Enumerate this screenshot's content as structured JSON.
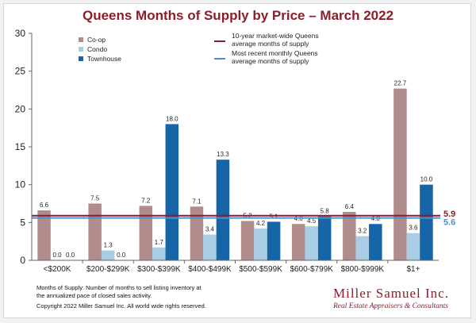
{
  "colors": {
    "coop": "#b08c8c",
    "condo": "#a8cde4",
    "townhouse": "#1565a8",
    "avg10": "#8a1f2b",
    "recent": "#4e8fc8",
    "title": "#8a1f2b",
    "grid": "#d0d0d0"
  },
  "chart_data": {
    "type": "bar",
    "title": "Queens Months of Supply by Price – March 2022",
    "categories": [
      "<$200K",
      "$200-$299K",
      "$300-$399K",
      "$400-$499K",
      "$500-$599K",
      "$600-$799K",
      "$800-$999K",
      "$1+"
    ],
    "series": [
      {
        "name": "Co-op",
        "key": "coop",
        "values": [
          6.6,
          7.5,
          7.2,
          7.1,
          5.2,
          4.8,
          6.4,
          22.7
        ],
        "labels": [
          "6.6",
          "7.5",
          "7.2",
          "7.1",
          "5.2",
          "4.8",
          "6.4",
          "22.7"
        ]
      },
      {
        "name": "Condo",
        "key": "condo",
        "values": [
          0.0,
          1.3,
          1.7,
          3.4,
          4.2,
          4.5,
          3.2,
          3.6
        ],
        "labels": [
          "0.0",
          "1.3",
          "1.7",
          "3.4",
          "4.2",
          "4.5",
          "3.2",
          "3.6"
        ]
      },
      {
        "name": "Townhouse",
        "key": "townhouse",
        "values": [
          0.0,
          0.0,
          18.0,
          13.3,
          5.1,
          5.8,
          4.8,
          10.0
        ],
        "labels": [
          "0.0",
          "0.0",
          "18.0",
          "13.3",
          "5.1",
          "5.8",
          "4.8",
          "10.0"
        ]
      }
    ],
    "ylim": [
      0,
      30
    ],
    "yticks": [
      0,
      5,
      10,
      15,
      20,
      25,
      30
    ],
    "reference_lines": [
      {
        "key": "avg10",
        "name_lines": [
          "10-year market-wide Queens",
          "average months of supply"
        ],
        "value": 5.9,
        "label": "5.9"
      },
      {
        "key": "recent",
        "name_lines": [
          "Most recent monthly Queens",
          "average months of supply"
        ],
        "value": 5.6,
        "label": "5.6"
      }
    ],
    "grid": false
  },
  "footnote": {
    "line1": "Months of Supply: Number of months to sell listing inventory at",
    "line2": "the annualized pace of closed sales activity.",
    "copyright": "Copyright 2022 Miller Samuel Inc.  All world wide rights reserved."
  },
  "brand": {
    "name": "Miller Samuel Inc.",
    "tagline": "Real Estate Appraisers & Consultants"
  }
}
